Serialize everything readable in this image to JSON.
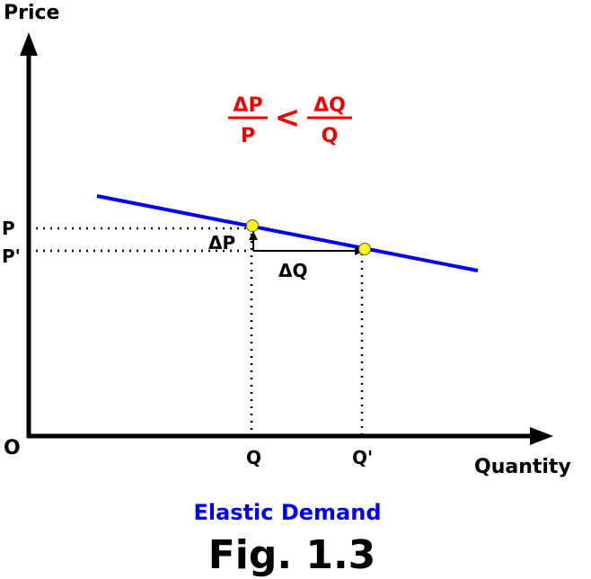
{
  "axes": {
    "y_label": "Price",
    "x_label": "Quantity",
    "origin": "O"
  },
  "price_labels": {
    "p": "P",
    "p_prime": "P'"
  },
  "quantity_labels": {
    "q": "Q",
    "q_prime": "Q'"
  },
  "changes": {
    "delta_p": "ΔP",
    "delta_q": "ΔQ"
  },
  "formula": {
    "left_numerator": "ΔP",
    "left_denominator": "P",
    "relation": "<",
    "right_numerator": "ΔQ",
    "right_denominator": "Q"
  },
  "caption": {
    "subtitle": "Elastic Demand",
    "figure": "Fig. 1.3"
  }
}
